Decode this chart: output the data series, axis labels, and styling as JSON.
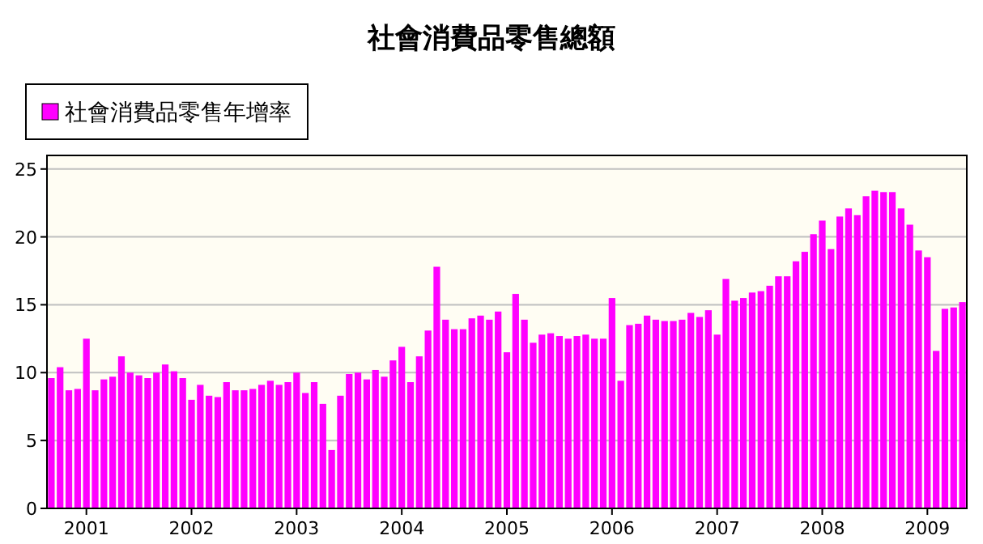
{
  "chart_data": {
    "type": "bar",
    "title": "社會消費品零售總額",
    "categories": [
      null,
      null,
      null,
      null,
      "2001",
      null,
      null,
      null,
      null,
      null,
      null,
      null,
      null,
      null,
      null,
      null,
      "2002",
      null,
      null,
      null,
      null,
      null,
      null,
      null,
      null,
      null,
      null,
      null,
      "2003",
      null,
      null,
      null,
      null,
      null,
      null,
      null,
      null,
      null,
      null,
      null,
      "2004",
      null,
      null,
      null,
      null,
      null,
      null,
      null,
      null,
      null,
      null,
      null,
      "2005",
      null,
      null,
      null,
      null,
      null,
      null,
      null,
      null,
      null,
      null,
      null,
      "2006",
      null,
      null,
      null,
      null,
      null,
      null,
      null,
      null,
      null,
      null,
      null,
      "2007",
      null,
      null,
      null,
      null,
      null,
      null,
      null,
      null,
      null,
      null,
      null,
      "2008",
      null,
      null,
      null,
      null,
      null,
      null,
      null,
      null,
      null,
      null,
      null,
      "2009",
      null,
      null,
      null,
      null
    ],
    "series": [
      {
        "name": "社會消費品零售年增率",
        "color": "#ff00ff",
        "values": [
          9.6,
          10.4,
          8.7,
          8.8,
          12.5,
          8.7,
          9.5,
          9.7,
          11.2,
          10.0,
          9.8,
          9.6,
          10.0,
          10.6,
          10.1,
          9.6,
          8.0,
          9.1,
          8.3,
          8.2,
          9.3,
          8.7,
          8.7,
          8.8,
          9.1,
          9.4,
          9.1,
          9.3,
          10.0,
          8.5,
          9.3,
          7.7,
          4.3,
          8.3,
          9.9,
          10.0,
          9.5,
          10.2,
          9.7,
          10.9,
          11.9,
          9.3,
          11.2,
          13.1,
          17.8,
          13.9,
          13.2,
          13.2,
          14.0,
          14.2,
          13.9,
          14.5,
          11.5,
          15.8,
          13.9,
          12.2,
          12.8,
          12.9,
          12.7,
          12.5,
          12.7,
          12.8,
          12.5,
          12.5,
          15.5,
          9.4,
          13.5,
          13.6,
          14.2,
          13.9,
          13.8,
          13.8,
          13.9,
          14.4,
          14.1,
          14.6,
          12.8,
          16.9,
          15.3,
          15.5,
          15.9,
          16.0,
          16.4,
          17.1,
          17.1,
          18.2,
          18.9,
          20.2,
          21.2,
          19.1,
          21.5,
          22.1,
          21.6,
          23.0,
          23.4,
          23.3,
          23.3,
          22.1,
          20.9,
          19.0,
          18.5,
          11.6,
          14.7,
          14.8,
          15.2
        ]
      }
    ],
    "ylim": [
      0,
      26
    ],
    "yticks": [
      0,
      5,
      10,
      15,
      20,
      25
    ],
    "grid": "y",
    "legend": "top left"
  }
}
